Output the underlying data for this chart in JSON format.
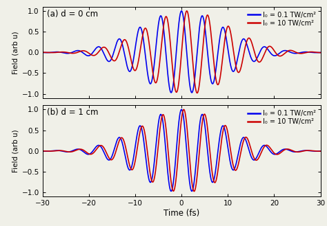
{
  "subplot_a_label": "(a) d = 0 cm",
  "subplot_b_label": "(b) d = 1 cm",
  "legend_label_1": "I₀ = 0.1 TW/cm²",
  "legend_label_2": "I₀ = 10 TW/cm²",
  "color_1": "#0000EE",
  "color_2": "#CC0000",
  "xlabel": "Time (fs)",
  "ylabel": "Field (arb u)",
  "xlim": [
    -30,
    30
  ],
  "ylim": [
    -1.1,
    1.1
  ],
  "xticks": [
    -30,
    -20,
    -10,
    0,
    10,
    20,
    30
  ],
  "yticks": [
    -1,
    -0.5,
    0,
    0.5,
    1
  ],
  "background_color": "#f0f0e8",
  "pulse_duration_fwhm": 14.0,
  "carrier_period": 4.5,
  "line_width": 1.2
}
